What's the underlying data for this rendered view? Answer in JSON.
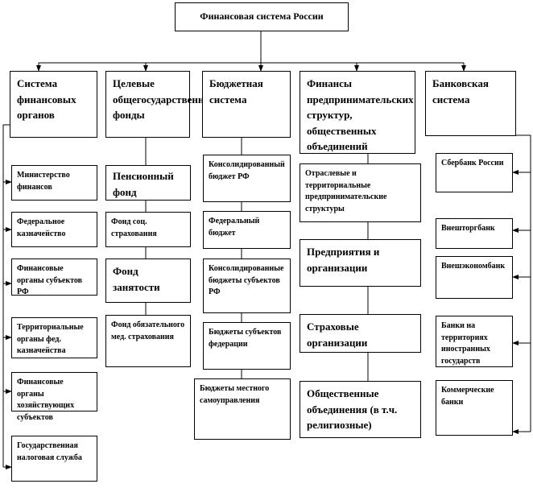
{
  "root": "Финансовая система России",
  "columns": [
    {
      "title": "Система финансовых органов",
      "items": [
        "Министерство финансов",
        "Федеральное казначейство",
        "Финансовые органы субъектов РФ",
        "Территориальные органы фед. казначейства",
        "Финансовые органы хозяйствующих субъектов",
        "Государственная налоговая служба"
      ]
    },
    {
      "title": "Целевые общегосударственные фонды",
      "items": [
        "Пенсионный фонд",
        "Фонд соц. страхования",
        "Фонд занятости",
        "Фонд обязательного мед. страхования"
      ]
    },
    {
      "title": "Бюджетная система",
      "items": [
        "Консолидированный бюджет РФ",
        "Федеральный бюджет",
        "Консолидированные бюджеты субъектов РФ",
        "Бюджеты субъектов федерации",
        "Бюджеты местного самоуправления"
      ]
    },
    {
      "title": "Финансы предпринимательских структур, общественных объединений",
      "items": [
        "Отраслевые и территориальные предпринимательские структуры",
        "Предприятия и организации",
        "Страховые организации",
        "Общественные объединения (в т.ч. религиозные)"
      ]
    },
    {
      "title": "Банковская система",
      "items": [
        "Сбербанк России",
        "Внешторгбанк",
        "Внешэкономбанк",
        "Банки на территориях иностранных государств",
        "Коммерческие банки"
      ]
    }
  ]
}
